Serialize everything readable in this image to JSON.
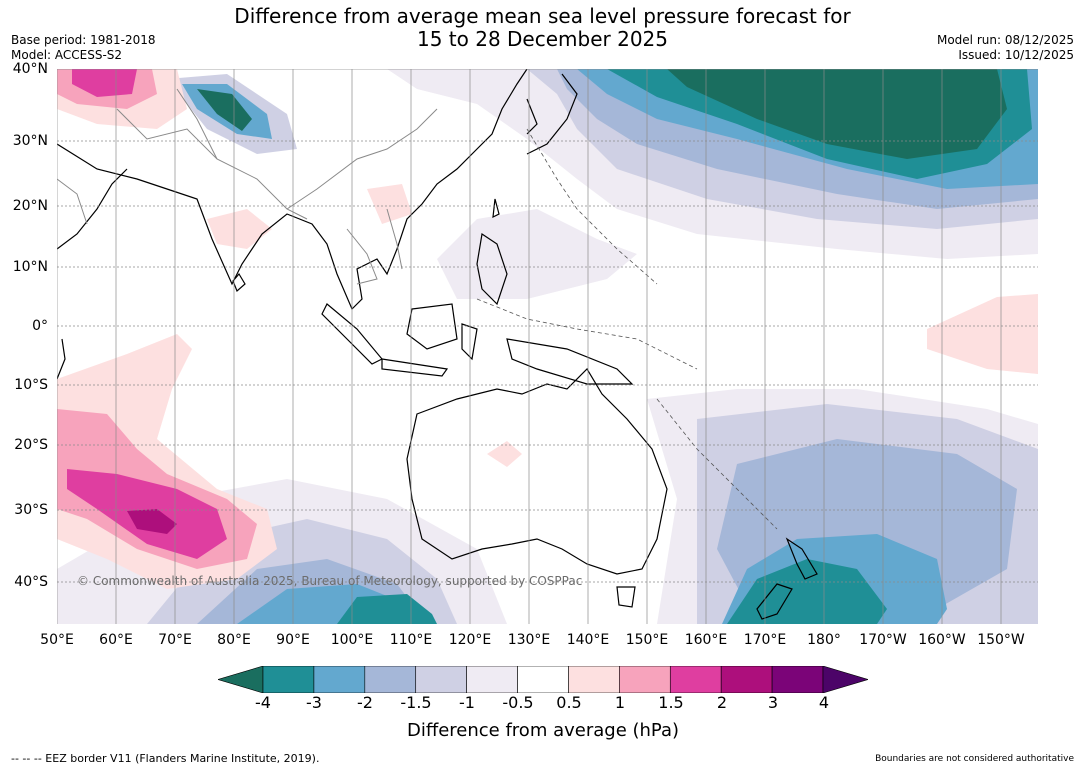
{
  "title": {
    "line1": "Difference from average mean sea level pressure forecast for",
    "line2": "15 to 28 December 2025"
  },
  "meta": {
    "base_period": "Base period: 1981-2018",
    "model": "Model: ACCESS-S2",
    "model_run": "Model run: 08/12/2025",
    "issued": "Issued: 10/12/2025"
  },
  "map": {
    "lat_labels": [
      "40°N",
      "30°N",
      "20°N",
      "10°N",
      "0°",
      "10°S",
      "20°S",
      "30°S",
      "40°S"
    ],
    "lon_labels": [
      "50°E",
      "60°E",
      "70°E",
      "80°E",
      "90°E",
      "100°E",
      "110°E",
      "120°E",
      "130°E",
      "140°E",
      "150°E",
      "160°E",
      "170°E",
      "180°",
      "170°W",
      "160°W",
      "150°W"
    ],
    "copyright": "© Commonwealth of Australia 2025, Bureau of Meteorology, supported by COSPPac"
  },
  "colorbar": {
    "ticks": [
      "-4",
      "-3",
      "-2",
      "-1.5",
      "-1",
      "-0.5",
      "0.5",
      "1",
      "1.5",
      "2",
      "3",
      "4"
    ],
    "colors": [
      "#1a6e5f",
      "#1f8f96",
      "#63a8cf",
      "#a5b7d8",
      "#cfd0e4",
      "#efebf3",
      "#ffffff",
      "#fde0e0",
      "#f7a3bc",
      "#df3ea0",
      "#ad0f7c",
      "#7b0478",
      "#4c0468"
    ],
    "label": "Difference from average (hPa)"
  },
  "footer": {
    "eez": "-- -- -- EEZ border V11 (Flanders Marine Institute, 2019).",
    "disclaimer": "Boundaries are not considered authoritative"
  }
}
